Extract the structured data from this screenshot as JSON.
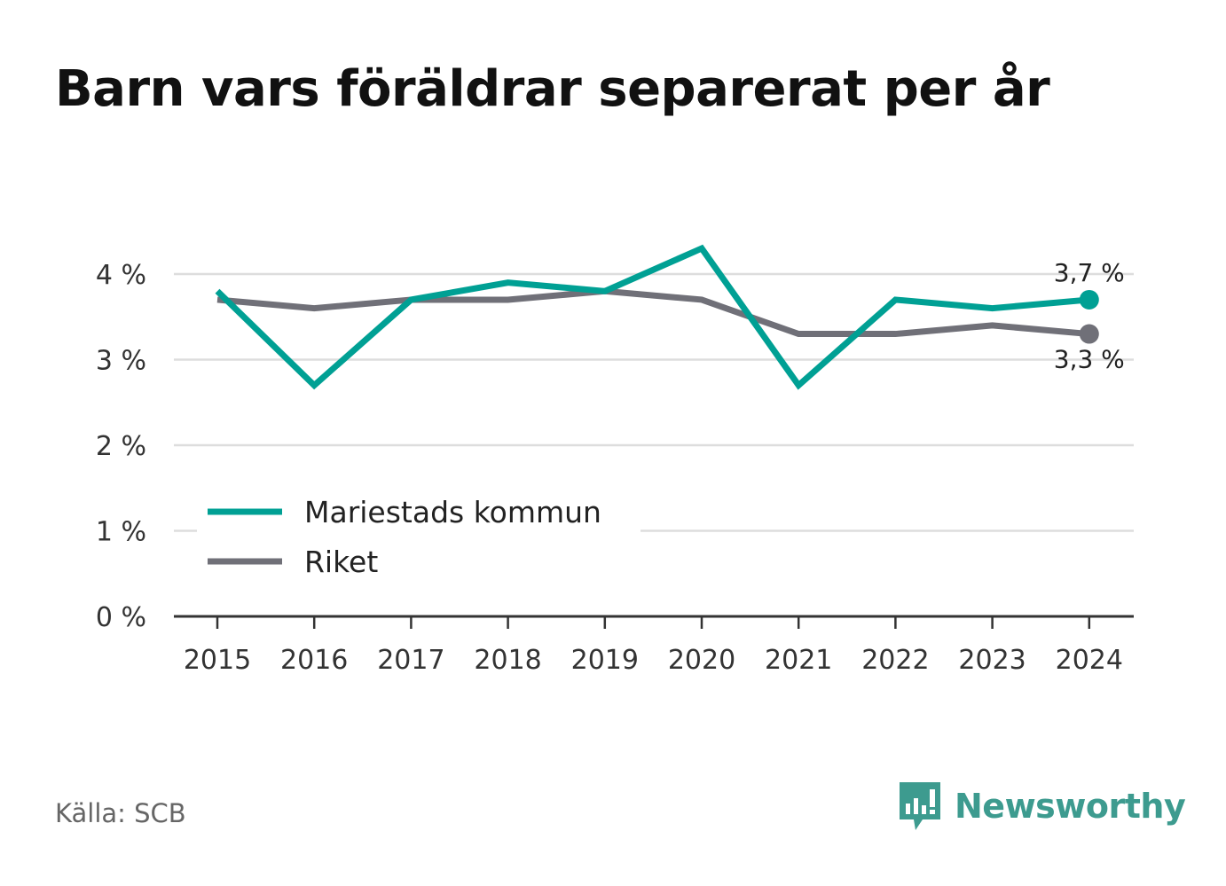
{
  "title": "Barn vars föräldrar separerat per år",
  "source": "Källa: SCB",
  "logo": {
    "name": "Newsworthy"
  },
  "colors": {
    "kommun": "#00a094",
    "riket": "#707078",
    "grid": "#dddddd",
    "axis": "#333333",
    "logo": "#3d9b8f"
  },
  "chart_data": {
    "type": "line",
    "x": [
      2015,
      2016,
      2017,
      2018,
      2019,
      2020,
      2021,
      2022,
      2023,
      2024
    ],
    "x_tick_labels": [
      "2015",
      "2016",
      "2017",
      "2018",
      "2019",
      "2020",
      "2021",
      "2022",
      "2023",
      "2024"
    ],
    "ylim": [
      0,
      4.5
    ],
    "y_ticks": [
      0,
      1,
      2,
      3,
      4
    ],
    "y_tick_labels": [
      "0 %",
      "1 %",
      "2 %",
      "3 %",
      "4 %"
    ],
    "grid": true,
    "legend_position": "bottom-left",
    "series": [
      {
        "name": "Mariestads kommun",
        "key": "kommun",
        "values": [
          3.8,
          2.7,
          3.7,
          3.9,
          3.8,
          4.3,
          2.7,
          3.7,
          3.6,
          3.7
        ],
        "end_label": "3,7 %"
      },
      {
        "name": "Riket",
        "key": "riket",
        "values": [
          3.7,
          3.6,
          3.7,
          3.7,
          3.8,
          3.7,
          3.3,
          3.3,
          3.4,
          3.3
        ],
        "end_label": "3,3 %"
      }
    ]
  }
}
